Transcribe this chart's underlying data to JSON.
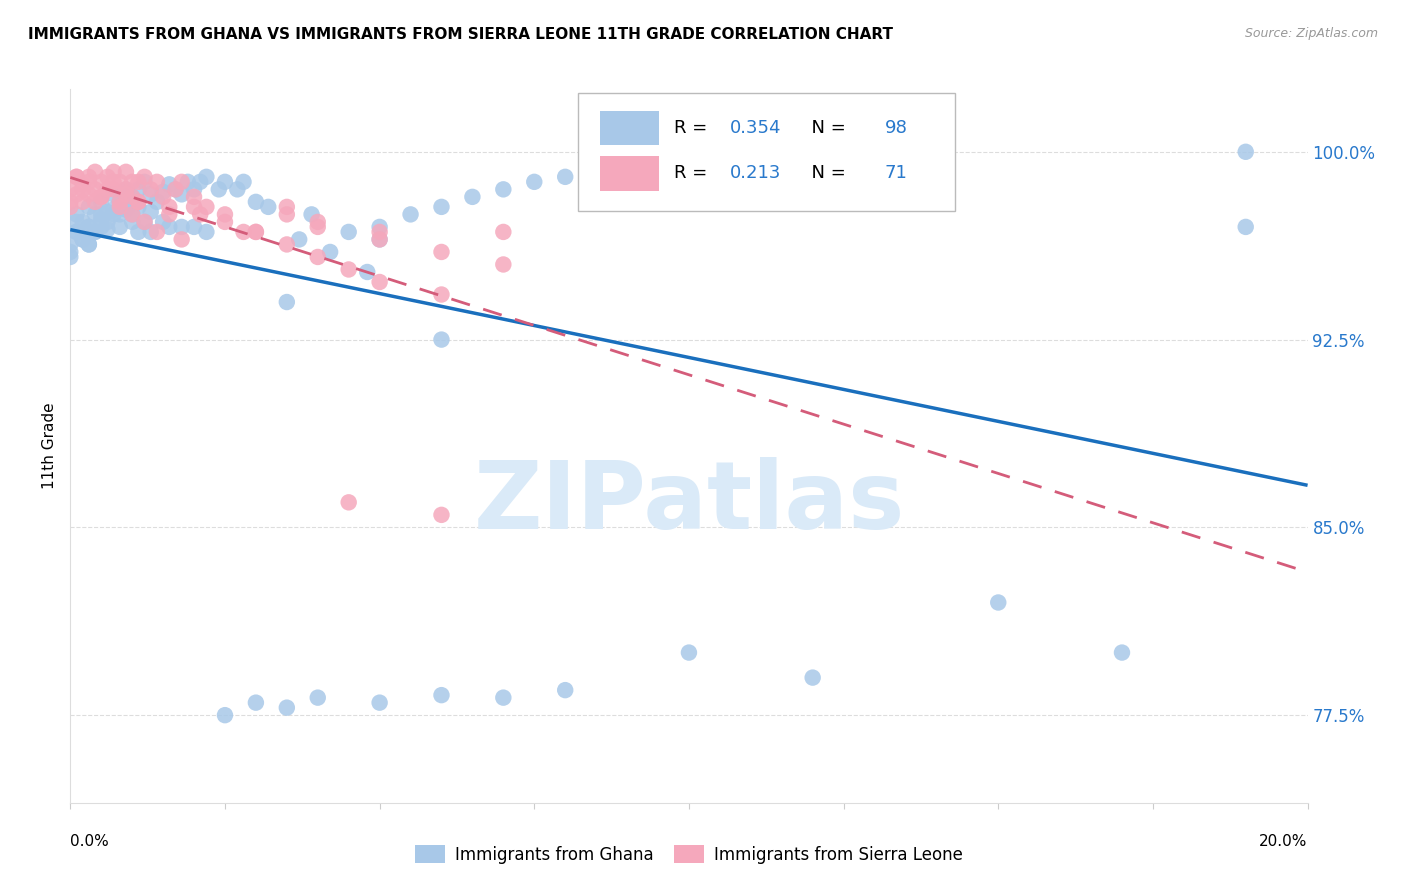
{
  "title": "IMMIGRANTS FROM GHANA VS IMMIGRANTS FROM SIERRA LEONE 11TH GRADE CORRELATION CHART",
  "source": "Source: ZipAtlas.com",
  "ylabel": "11th Grade",
  "yaxis_labels": [
    "77.5%",
    "85.0%",
    "92.5%",
    "100.0%"
  ],
  "yaxis_values": [
    0.775,
    0.85,
    0.925,
    1.0
  ],
  "xmin": 0.0,
  "xmax": 0.2,
  "ymin": 0.74,
  "ymax": 1.025,
  "ghana_R": 0.354,
  "ghana_N": 98,
  "sierra_R": 0.213,
  "sierra_N": 71,
  "ghana_color": "#a8c8e8",
  "sierra_color": "#f5a8bc",
  "ghana_line_color": "#1a6fbd",
  "sierra_line_color": "#d45c7a",
  "watermark_text": "ZIPatlas",
  "watermark_color": "#daeaf8",
  "background_color": "#ffffff",
  "grid_color": "#dddddd",
  "ghana_scatter_x": [
    0.001,
    0.001,
    0.002,
    0.002,
    0.003,
    0.003,
    0.003,
    0.004,
    0.004,
    0.005,
    0.005,
    0.006,
    0.006,
    0.007,
    0.007,
    0.008,
    0.009,
    0.009,
    0.01,
    0.01,
    0.011,
    0.011,
    0.012,
    0.013,
    0.013,
    0.014,
    0.015,
    0.016,
    0.017,
    0.018,
    0.019,
    0.02,
    0.021,
    0.022,
    0.024,
    0.025,
    0.027,
    0.028,
    0.03,
    0.032,
    0.035,
    0.037,
    0.039,
    0.042,
    0.045,
    0.048,
    0.05,
    0.055,
    0.06,
    0.065,
    0.07,
    0.075,
    0.08,
    0.09,
    0.1,
    0.11,
    0.13,
    0.19,
    0.0,
    0.0,
    0.0,
    0.001,
    0.001,
    0.002,
    0.003,
    0.003,
    0.004,
    0.005,
    0.005,
    0.006,
    0.007,
    0.008,
    0.008,
    0.009,
    0.01,
    0.011,
    0.012,
    0.013,
    0.015,
    0.016,
    0.018,
    0.02,
    0.022,
    0.025,
    0.03,
    0.035,
    0.04,
    0.05,
    0.06,
    0.07,
    0.08,
    0.1,
    0.12,
    0.15,
    0.17,
    0.19,
    0.05,
    0.06
  ],
  "ghana_scatter_y": [
    0.975,
    0.968,
    0.972,
    0.965,
    0.978,
    0.97,
    0.963,
    0.975,
    0.968,
    0.98,
    0.973,
    0.976,
    0.969,
    0.983,
    0.975,
    0.98,
    0.985,
    0.977,
    0.982,
    0.975,
    0.985,
    0.978,
    0.988,
    0.983,
    0.976,
    0.98,
    0.984,
    0.987,
    0.985,
    0.983,
    0.988,
    0.985,
    0.988,
    0.99,
    0.985,
    0.988,
    0.985,
    0.988,
    0.98,
    0.978,
    0.94,
    0.965,
    0.975,
    0.96,
    0.968,
    0.952,
    0.965,
    0.975,
    0.978,
    0.982,
    0.985,
    0.988,
    0.99,
    0.985,
    0.988,
    0.992,
    0.983,
    1.0,
    0.96,
    0.958,
    0.963,
    0.968,
    0.972,
    0.965,
    0.97,
    0.963,
    0.968,
    0.975,
    0.97,
    0.972,
    0.977,
    0.975,
    0.97,
    0.977,
    0.972,
    0.968,
    0.972,
    0.968,
    0.972,
    0.97,
    0.97,
    0.97,
    0.968,
    0.775,
    0.78,
    0.778,
    0.782,
    0.78,
    0.783,
    0.782,
    0.785,
    0.8,
    0.79,
    0.82,
    0.8,
    0.97,
    0.97,
    0.925
  ],
  "sierra_scatter_x": [
    0.0,
    0.0,
    0.001,
    0.001,
    0.002,
    0.002,
    0.003,
    0.003,
    0.004,
    0.004,
    0.005,
    0.005,
    0.006,
    0.007,
    0.007,
    0.008,
    0.008,
    0.009,
    0.009,
    0.01,
    0.01,
    0.011,
    0.011,
    0.012,
    0.013,
    0.014,
    0.015,
    0.016,
    0.017,
    0.018,
    0.02,
    0.021,
    0.022,
    0.025,
    0.028,
    0.03,
    0.035,
    0.04,
    0.045,
    0.05,
    0.06,
    0.07,
    0.0,
    0.001,
    0.002,
    0.003,
    0.004,
    0.005,
    0.006,
    0.007,
    0.008,
    0.009,
    0.01,
    0.011,
    0.012,
    0.014,
    0.016,
    0.018,
    0.02,
    0.025,
    0.03,
    0.035,
    0.04,
    0.045,
    0.05,
    0.06,
    0.035,
    0.04,
    0.05,
    0.06,
    0.07
  ],
  "sierra_scatter_y": [
    0.985,
    0.98,
    0.99,
    0.983,
    0.987,
    0.98,
    0.99,
    0.983,
    0.992,
    0.985,
    0.988,
    0.982,
    0.99,
    0.992,
    0.985,
    0.988,
    0.98,
    0.992,
    0.985,
    0.988,
    0.982,
    0.988,
    0.98,
    0.99,
    0.985,
    0.988,
    0.982,
    0.978,
    0.985,
    0.988,
    0.982,
    0.975,
    0.978,
    0.975,
    0.968,
    0.968,
    0.978,
    0.972,
    0.86,
    0.968,
    0.855,
    0.968,
    0.978,
    0.99,
    0.985,
    0.988,
    0.98,
    0.982,
    0.985,
    0.988,
    0.978,
    0.983,
    0.975,
    0.98,
    0.972,
    0.968,
    0.975,
    0.965,
    0.978,
    0.972,
    0.968,
    0.963,
    0.958,
    0.953,
    0.948,
    0.943,
    0.975,
    0.97,
    0.965,
    0.96,
    0.955
  ]
}
